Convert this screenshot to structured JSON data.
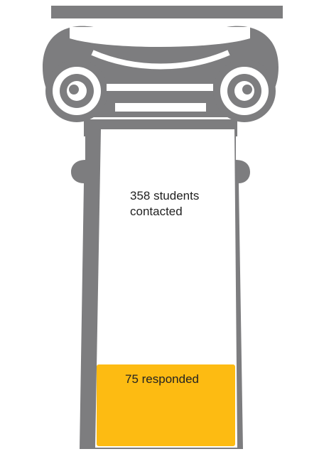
{
  "chart_data": {
    "type": "bar",
    "total": 358,
    "part": 75,
    "total_label": "358 students contacted",
    "part_label": "75 responded",
    "title": "",
    "xlabel": "",
    "ylabel": ""
  },
  "colors": {
    "column_gray": "#7d7d7f",
    "fill_yellow": "#fdbb12",
    "background": "#ffffff",
    "text": "#222222"
  },
  "icon": "ionic-column-icon"
}
